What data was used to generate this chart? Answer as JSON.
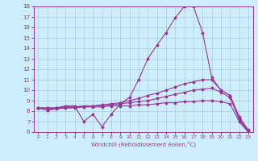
{
  "title": "",
  "xlabel": "Windchill (Refroidissement éolien,°C)",
  "ylabel": "",
  "bg_color": "#cceeff",
  "grid_color": "#aaccdd",
  "line_color": "#993399",
  "xlim": [
    -0.5,
    23.5
  ],
  "ylim": [
    6,
    18
  ],
  "yticks": [
    6,
    7,
    8,
    9,
    10,
    11,
    12,
    13,
    14,
    15,
    16,
    17,
    18
  ],
  "xticks": [
    0,
    1,
    2,
    3,
    4,
    5,
    6,
    7,
    8,
    9,
    10,
    11,
    12,
    13,
    14,
    15,
    16,
    17,
    18,
    19,
    20,
    21,
    22,
    23
  ],
  "line1": [
    8.3,
    8.1,
    8.3,
    8.5,
    8.5,
    7.0,
    7.7,
    6.5,
    7.7,
    8.7,
    9.3,
    11.0,
    13.0,
    14.3,
    15.5,
    16.9,
    18.0,
    18.0,
    15.5,
    11.2,
    10.0,
    9.5,
    7.2,
    6.0
  ],
  "line2": [
    8.3,
    8.1,
    8.2,
    8.3,
    8.4,
    8.5,
    8.5,
    8.6,
    8.7,
    8.8,
    9.0,
    9.2,
    9.5,
    9.7,
    10.0,
    10.3,
    10.6,
    10.8,
    11.0,
    11.0,
    10.0,
    9.5,
    7.5,
    6.2
  ],
  "line3": [
    8.3,
    8.3,
    8.3,
    8.4,
    8.4,
    8.4,
    8.5,
    8.5,
    8.6,
    8.7,
    8.8,
    8.9,
    9.0,
    9.2,
    9.4,
    9.6,
    9.8,
    10.0,
    10.1,
    10.2,
    9.8,
    9.3,
    7.3,
    6.1
  ],
  "line4": [
    8.3,
    8.3,
    8.3,
    8.3,
    8.3,
    8.4,
    8.4,
    8.4,
    8.5,
    8.5,
    8.5,
    8.6,
    8.6,
    8.7,
    8.8,
    8.8,
    8.9,
    8.9,
    9.0,
    9.0,
    8.9,
    8.7,
    7.0,
    6.0
  ]
}
